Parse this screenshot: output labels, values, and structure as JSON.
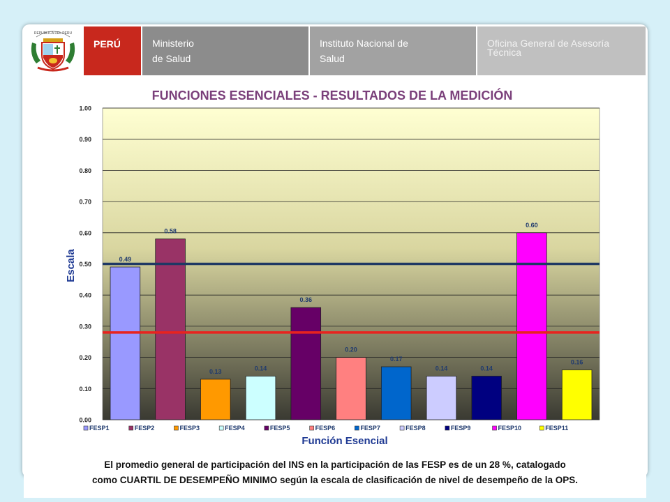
{
  "header": {
    "country": "PERÚ",
    "ministry_line1": "Ministerio",
    "ministry_line2": "de Salud",
    "institute_line1": "Instituto Nacional de",
    "institute_line2": "Salud",
    "office_line1": "Oficina General de Asesoría",
    "office_line2": "Técnica",
    "shield_text": "REPUBLICA DEL PERU"
  },
  "chart_data": {
    "type": "bar",
    "title": "FUNCIONES ESENCIALES - RESULTADOS DE LA MEDICIÓN",
    "xlabel": "Función Esencial",
    "ylabel": "Escala",
    "ylim": [
      0,
      1
    ],
    "yticks": [
      "0.00",
      "0.10",
      "0.20",
      "0.30",
      "0.40",
      "0.50",
      "0.60",
      "0.70",
      "0.80",
      "0.90",
      "1.00"
    ],
    "grid": true,
    "legend_position": "bottom",
    "categories": [
      "FESP1",
      "FESP2",
      "FESP3",
      "FESP4",
      "FESP5",
      "FESP6",
      "FESP7",
      "FESP8",
      "FESP9",
      "FESP10",
      "FESP11"
    ],
    "values": [
      0.49,
      0.58,
      0.13,
      0.14,
      0.36,
      0.2,
      0.17,
      0.14,
      0.14,
      0.6,
      0.16
    ],
    "data_labels": [
      "0.49",
      "0.58",
      "0.13",
      "0.14",
      "0.36",
      "0.20",
      "0.17",
      "0.14",
      "0.14",
      "0.60",
      "0.16"
    ],
    "colors": [
      "#9999ff",
      "#993366",
      "#ff9900",
      "#ccffff",
      "#660066",
      "#ff8080",
      "#0066cc",
      "#ccccff",
      "#000080",
      "#ff00ff",
      "#ffff00"
    ],
    "reference_lines": [
      {
        "value": 0.5,
        "color": "#1f3864"
      },
      {
        "value": 0.28,
        "color": "#e8231f"
      }
    ]
  },
  "footer": {
    "line1": "El promedio general de participación del INS en la participación de las FESP es de un 28 %, catalogado",
    "line2": "como CUARTIL DE DESEMPEÑO MINIMO según la escala de clasificación de nivel de desempeño de la OPS."
  }
}
